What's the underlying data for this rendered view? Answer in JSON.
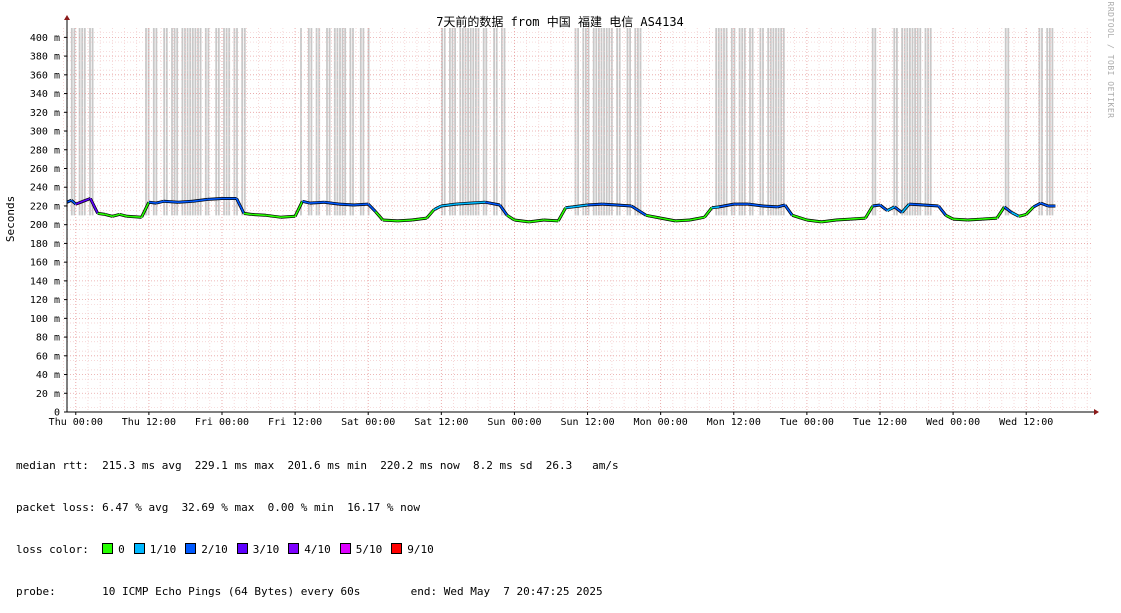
{
  "chart_data": {
    "type": "line",
    "title": "7天前的数据 from 中国 福建 电信 AS4134",
    "ylabel": "Seconds",
    "ylim": [
      0,
      0.41
    ],
    "yticks": [
      {
        "v": 0,
        "label": "0"
      },
      {
        "v": 0.02,
        "label": "20 m"
      },
      {
        "v": 0.04,
        "label": "40 m"
      },
      {
        "v": 0.06,
        "label": "60 m"
      },
      {
        "v": 0.08,
        "label": "80 m"
      },
      {
        "v": 0.1,
        "label": "100 m"
      },
      {
        "v": 0.12,
        "label": "120 m"
      },
      {
        "v": 0.14,
        "label": "140 m"
      },
      {
        "v": 0.16,
        "label": "160 m"
      },
      {
        "v": 0.18,
        "label": "180 m"
      },
      {
        "v": 0.2,
        "label": "200 m"
      },
      {
        "v": 0.22,
        "label": "220 m"
      },
      {
        "v": 0.24,
        "label": "240 m"
      },
      {
        "v": 0.26,
        "label": "260 m"
      },
      {
        "v": 0.28,
        "label": "280 m"
      },
      {
        "v": 0.3,
        "label": "300 m"
      },
      {
        "v": 0.32,
        "label": "320 m"
      },
      {
        "v": 0.34,
        "label": "340 m"
      },
      {
        "v": 0.36,
        "label": "360 m"
      },
      {
        "v": 0.38,
        "label": "380 m"
      },
      {
        "v": 0.4,
        "label": "400 m"
      }
    ],
    "xlim": [
      -0.06,
      6.95
    ],
    "xticks": [
      {
        "v": 0,
        "label": "Thu 00:00"
      },
      {
        "v": 0.5,
        "label": "Thu 12:00"
      },
      {
        "v": 1,
        "label": "Fri 00:00"
      },
      {
        "v": 1.5,
        "label": "Fri 12:00"
      },
      {
        "v": 2,
        "label": "Sat 00:00"
      },
      {
        "v": 2.5,
        "label": "Sat 12:00"
      },
      {
        "v": 3,
        "label": "Sun 00:00"
      },
      {
        "v": 3.5,
        "label": "Sun 12:00"
      },
      {
        "v": 4,
        "label": "Mon 00:00"
      },
      {
        "v": 4.5,
        "label": "Mon 12:00"
      },
      {
        "v": 5,
        "label": "Tue 00:00"
      },
      {
        "v": 5.5,
        "label": "Tue 12:00"
      },
      {
        "v": 6,
        "label": "Wed 00:00"
      },
      {
        "v": 6.5,
        "label": "Wed 12:00"
      }
    ],
    "grid": true,
    "loss_colors": {
      "0": "#26ff00",
      "1": "#00b8ff",
      "2": "#0059ff",
      "3": "#5e00ff",
      "4": "#7e00ff",
      "5": "#dd00ff",
      "9": "#ff0000"
    },
    "median_rtt": [
      [
        -0.06,
        0.224,
        2
      ],
      [
        -0.03,
        0.226,
        2
      ],
      [
        0.0,
        0.222,
        3
      ],
      [
        0.05,
        0.225,
        3
      ],
      [
        0.1,
        0.228,
        3
      ],
      [
        0.15,
        0.212,
        0
      ],
      [
        0.2,
        0.211,
        0
      ],
      [
        0.25,
        0.209,
        0
      ],
      [
        0.3,
        0.211,
        0
      ],
      [
        0.35,
        0.209,
        0
      ],
      [
        0.45,
        0.208,
        0
      ],
      [
        0.5,
        0.224,
        2
      ],
      [
        0.55,
        0.223,
        2
      ],
      [
        0.6,
        0.225,
        2
      ],
      [
        0.7,
        0.224,
        2
      ],
      [
        0.8,
        0.225,
        2
      ],
      [
        0.9,
        0.227,
        2
      ],
      [
        1.0,
        0.228,
        2
      ],
      [
        1.1,
        0.228,
        2
      ],
      [
        1.15,
        0.212,
        0
      ],
      [
        1.2,
        0.211,
        0
      ],
      [
        1.3,
        0.21,
        0
      ],
      [
        1.4,
        0.208,
        0
      ],
      [
        1.5,
        0.209,
        0
      ],
      [
        1.55,
        0.225,
        2
      ],
      [
        1.6,
        0.223,
        2
      ],
      [
        1.7,
        0.224,
        2
      ],
      [
        1.8,
        0.222,
        2
      ],
      [
        1.9,
        0.221,
        2
      ],
      [
        2.0,
        0.222,
        2
      ],
      [
        2.05,
        0.214,
        0
      ],
      [
        2.1,
        0.205,
        0
      ],
      [
        2.2,
        0.204,
        0
      ],
      [
        2.3,
        0.205,
        0
      ],
      [
        2.4,
        0.207,
        0
      ],
      [
        2.45,
        0.216,
        1
      ],
      [
        2.5,
        0.22,
        1
      ],
      [
        2.6,
        0.222,
        1
      ],
      [
        2.7,
        0.223,
        1
      ],
      [
        2.8,
        0.224,
        2
      ],
      [
        2.9,
        0.221,
        2
      ],
      [
        2.95,
        0.21,
        0
      ],
      [
        3.0,
        0.205,
        0
      ],
      [
        3.1,
        0.203,
        0
      ],
      [
        3.2,
        0.205,
        0
      ],
      [
        3.3,
        0.204,
        0
      ],
      [
        3.35,
        0.218,
        1
      ],
      [
        3.4,
        0.219,
        1
      ],
      [
        3.5,
        0.221,
        2
      ],
      [
        3.6,
        0.222,
        2
      ],
      [
        3.7,
        0.221,
        2
      ],
      [
        3.8,
        0.22,
        2
      ],
      [
        3.85,
        0.215,
        2
      ],
      [
        3.9,
        0.21,
        0
      ],
      [
        4.0,
        0.207,
        0
      ],
      [
        4.1,
        0.204,
        0
      ],
      [
        4.2,
        0.205,
        0
      ],
      [
        4.3,
        0.208,
        0
      ],
      [
        4.35,
        0.218,
        1
      ],
      [
        4.4,
        0.219,
        2
      ],
      [
        4.5,
        0.222,
        2
      ],
      [
        4.6,
        0.222,
        2
      ],
      [
        4.7,
        0.22,
        2
      ],
      [
        4.8,
        0.219,
        2
      ],
      [
        4.85,
        0.221,
        2
      ],
      [
        4.9,
        0.21,
        0
      ],
      [
        5.0,
        0.205,
        0
      ],
      [
        5.1,
        0.203,
        0
      ],
      [
        5.2,
        0.205,
        0
      ],
      [
        5.3,
        0.206,
        0
      ],
      [
        5.4,
        0.207,
        0
      ],
      [
        5.45,
        0.22,
        2
      ],
      [
        5.5,
        0.221,
        2
      ],
      [
        5.55,
        0.215,
        1
      ],
      [
        5.6,
        0.219,
        2
      ],
      [
        5.65,
        0.213,
        1
      ],
      [
        5.7,
        0.222,
        2
      ],
      [
        5.8,
        0.221,
        2
      ],
      [
        5.9,
        0.22,
        2
      ],
      [
        5.95,
        0.21,
        0
      ],
      [
        6.0,
        0.206,
        0
      ],
      [
        6.1,
        0.205,
        0
      ],
      [
        6.2,
        0.206,
        0
      ],
      [
        6.3,
        0.207,
        0
      ],
      [
        6.35,
        0.219,
        2
      ],
      [
        6.4,
        0.213,
        1
      ],
      [
        6.45,
        0.209,
        0
      ],
      [
        6.5,
        0.211,
        0
      ],
      [
        6.55,
        0.219,
        2
      ],
      [
        6.6,
        0.223,
        2
      ],
      [
        6.65,
        0.22,
        2
      ],
      [
        6.7,
        0.22,
        2
      ]
    ],
    "loss_spike_ranges": [
      [
        -0.045,
        0.155
      ],
      [
        0.48,
        1.16
      ],
      [
        1.54,
        2.02
      ],
      [
        2.47,
        2.94
      ],
      [
        3.4,
        3.87
      ],
      [
        4.38,
        4.85
      ],
      [
        5.45,
        5.48
      ],
      [
        5.58,
        5.88
      ],
      [
        6.36,
        6.38
      ],
      [
        6.59,
        6.7
      ]
    ]
  },
  "stats": {
    "median_rtt": "median rtt:  215.3 ms avg  229.1 ms max  201.6 ms min  220.2 ms now  8.2 ms sd  26.3   am/s",
    "packet_loss": "packet loss: 6.47 % avg  32.69 % max  0.00 % min  16.17 % now",
    "loss_color_label": "loss color:",
    "loss_items": [
      {
        "label": "0",
        "color": "#26ff00"
      },
      {
        "label": "1/10",
        "color": "#00b8ff"
      },
      {
        "label": "2/10",
        "color": "#0059ff"
      },
      {
        "label": "3/10",
        "color": "#5e00ff"
      },
      {
        "label": "4/10",
        "color": "#7e00ff"
      },
      {
        "label": "5/10",
        "color": "#dd00ff"
      },
      {
        "label": "9/10",
        "color": "#ff0000"
      }
    ],
    "probe": "probe:       10 ICMP Echo Pings (64 Bytes) every 60s",
    "end": "end: Wed May  7 20:47:25 2025"
  },
  "watermark": "RRDTOOL / TOBI OETIKER"
}
